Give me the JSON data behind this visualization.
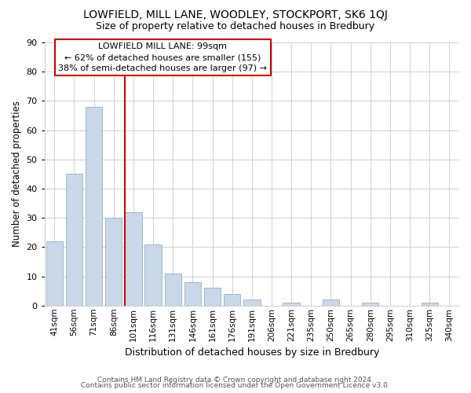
{
  "title": "LOWFIELD, MILL LANE, WOODLEY, STOCKPORT, SK6 1QJ",
  "subtitle": "Size of property relative to detached houses in Bredbury",
  "xlabel": "Distribution of detached houses by size in Bredbury",
  "ylabel": "Number of detached properties",
  "footer1": "Contains HM Land Registry data © Crown copyright and database right 2024.",
  "footer2": "Contains public sector information licensed under the Open Government Licence v3.0.",
  "bar_labels": [
    "41sqm",
    "56sqm",
    "71sqm",
    "86sqm",
    "101sqm",
    "116sqm",
    "131sqm",
    "146sqm",
    "161sqm",
    "176sqm",
    "191sqm",
    "206sqm",
    "221sqm",
    "235sqm",
    "250sqm",
    "265sqm",
    "280sqm",
    "295sqm",
    "310sqm",
    "325sqm",
    "340sqm"
  ],
  "bar_values": [
    22,
    45,
    68,
    30,
    32,
    21,
    11,
    8,
    6,
    4,
    2,
    0,
    1,
    0,
    2,
    0,
    1,
    0,
    0,
    1,
    0
  ],
  "bar_color": "#c8d8e8",
  "bar_edge_color": "#a0b8cc",
  "vline_x_index": 4,
  "vline_color": "#cc0000",
  "annotation_title": "LOWFIELD MILL LANE: 99sqm",
  "annotation_line1": "← 62% of detached houses are smaller (155)",
  "annotation_line2": "38% of semi-detached houses are larger (97) →",
  "annotation_box_color": "#ffffff",
  "annotation_box_edge": "#cc0000",
  "ylim": [
    0,
    90
  ],
  "yticks": [
    0,
    10,
    20,
    30,
    40,
    50,
    60,
    70,
    80,
    90
  ],
  "background_color": "#ffffff",
  "grid_color": "#d0d0d0"
}
